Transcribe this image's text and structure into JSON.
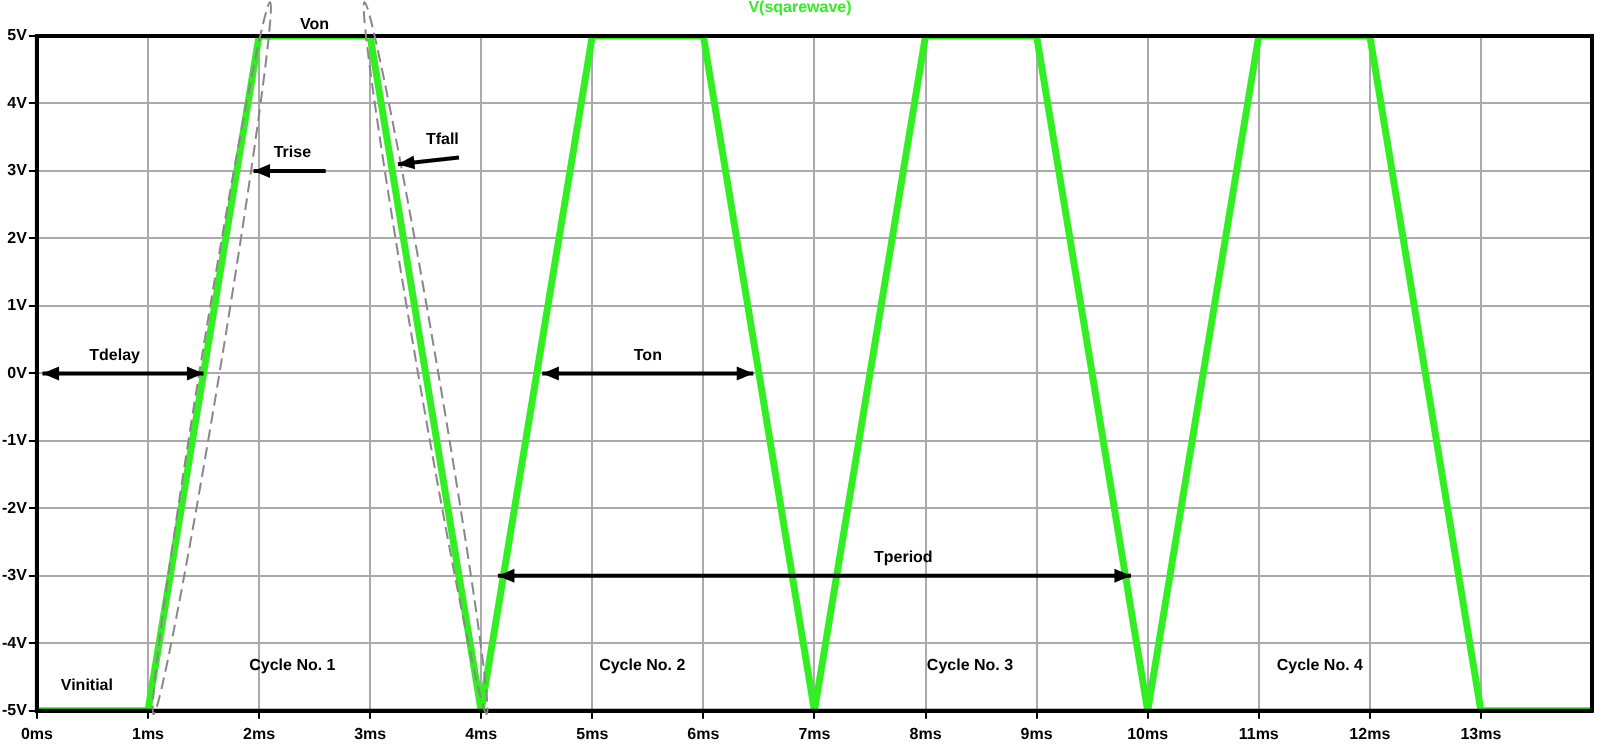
{
  "chart_data": {
    "type": "line",
    "x": [
      0,
      1,
      2,
      3,
      4,
      5,
      6,
      7,
      8,
      9,
      10,
      11,
      12,
      13,
      14
    ],
    "series": [
      {
        "name": "V(sqarewave)",
        "color": "#33ee22",
        "values": [
          -5,
          -5,
          5,
          5,
          -5,
          5,
          5,
          -5,
          5,
          5,
          -5,
          5,
          5,
          -5,
          -5
        ]
      }
    ],
    "xlim": [
      0,
      14
    ],
    "xticks": [
      {
        "value": 0,
        "label": "0ms"
      },
      {
        "value": 1,
        "label": "1ms"
      },
      {
        "value": 2,
        "label": "2ms"
      },
      {
        "value": 3,
        "label": "3ms"
      },
      {
        "value": 4,
        "label": "4ms"
      },
      {
        "value": 5,
        "label": "5ms"
      },
      {
        "value": 6,
        "label": "6ms"
      },
      {
        "value": 7,
        "label": "7ms"
      },
      {
        "value": 8,
        "label": "8ms"
      },
      {
        "value": 9,
        "label": "9ms"
      },
      {
        "value": 10,
        "label": "10ms"
      },
      {
        "value": 11,
        "label": "11ms"
      },
      {
        "value": 12,
        "label": "12ms"
      },
      {
        "value": 13,
        "label": "13ms"
      }
    ],
    "ylim": [
      -5,
      5
    ],
    "yticks": [
      {
        "value": -5,
        "label": "-5V"
      },
      {
        "value": -4,
        "label": "-4V"
      },
      {
        "value": -3,
        "label": "-3V"
      },
      {
        "value": -2,
        "label": "-2V"
      },
      {
        "value": -1,
        "label": "-1V"
      },
      {
        "value": 0,
        "label": "0V"
      },
      {
        "value": 1,
        "label": "1V"
      },
      {
        "value": 2,
        "label": "2V"
      },
      {
        "value": 3,
        "label": "3V"
      },
      {
        "value": 4,
        "label": "4V"
      },
      {
        "value": 5,
        "label": "5V"
      }
    ],
    "grid": true,
    "legend": "top",
    "marker": "none",
    "line_style": "solid",
    "annotations": [
      "Von",
      "Trise",
      "Tfall",
      "Tdelay",
      "Ton",
      "Tperiod",
      "Vinitial",
      "Cycle No. 1",
      "Cycle No. 2",
      "Cycle No. 3",
      "Cycle No. 4"
    ]
  }
}
